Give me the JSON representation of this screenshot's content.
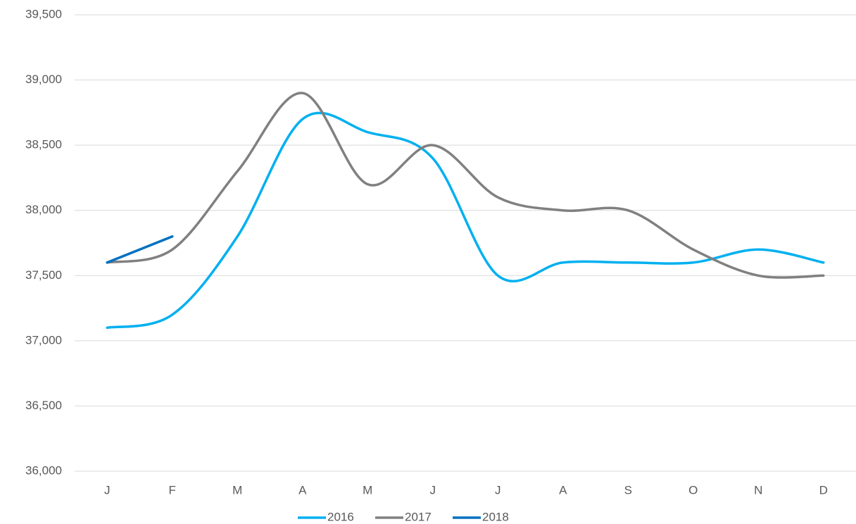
{
  "chart_data": {
    "type": "line",
    "categories": [
      "J",
      "F",
      "M",
      "A",
      "M",
      "J",
      "J",
      "A",
      "S",
      "O",
      "N",
      "D"
    ],
    "series": [
      {
        "name": "2016",
        "color": "#00b0f0",
        "values": [
          37100,
          37200,
          37800,
          38700,
          38600,
          38400,
          37500,
          37600,
          37600,
          37600,
          37700,
          37600
        ]
      },
      {
        "name": "2017",
        "color": "#808080",
        "values": [
          37600,
          37700,
          38300,
          38900,
          38200,
          38500,
          38100,
          38000,
          38000,
          37700,
          37500,
          37500
        ]
      },
      {
        "name": "2018",
        "color": "#0070c0",
        "values": [
          37600,
          37800,
          null,
          null,
          null,
          null,
          null,
          null,
          null,
          null,
          null,
          null
        ]
      }
    ],
    "ylim": [
      36000,
      39500
    ],
    "yticks": [
      {
        "value": 36000,
        "label": "36,000"
      },
      {
        "value": 36500,
        "label": "36,500"
      },
      {
        "value": 37000,
        "label": "37,000"
      },
      {
        "value": 37500,
        "label": "37,500"
      },
      {
        "value": 38000,
        "label": "38,000"
      },
      {
        "value": 38500,
        "label": "38,500"
      },
      {
        "value": 39000,
        "label": "39,000"
      },
      {
        "value": 39500,
        "label": "39,500"
      }
    ],
    "grid": true,
    "smooth": true,
    "legend": "bottom"
  }
}
